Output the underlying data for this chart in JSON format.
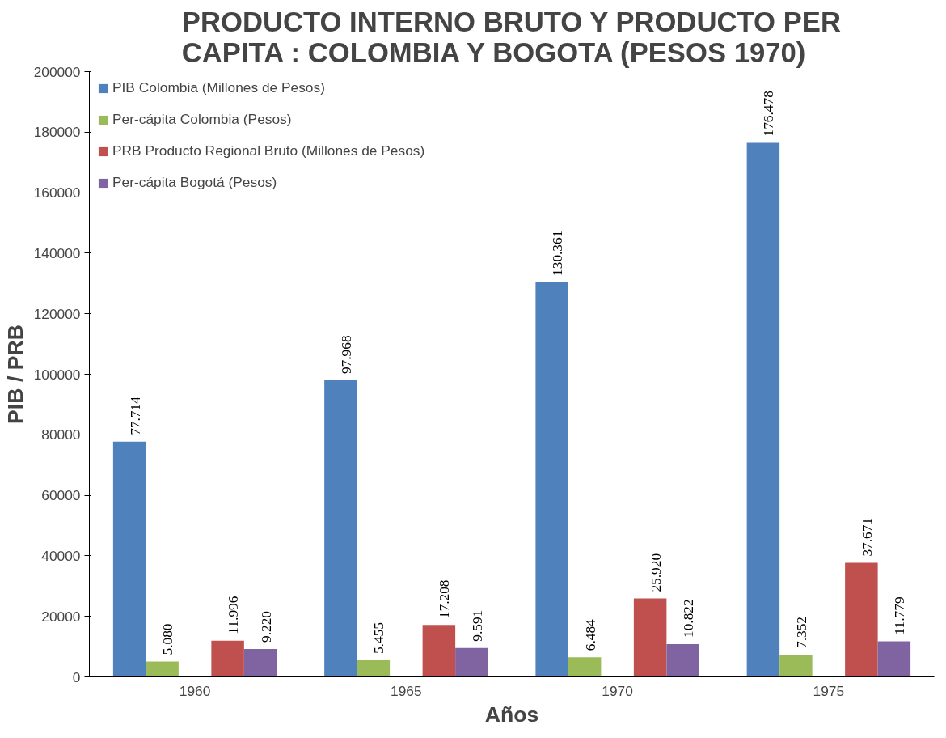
{
  "chart_data": {
    "type": "bar",
    "title": "PRODUCTO INTERNO BRUTO Y PRODUCTO PER\nCAPITA : COLOMBIA Y BOGOTA (PESOS 1970)",
    "xlabel": "Años",
    "ylabel": "PIB / PRB",
    "categories": [
      "1960",
      "1965",
      "1970",
      "1975"
    ],
    "series": [
      {
        "name": "PIB Colombia (Millones de Pesos)",
        "color": "#4f81bd",
        "values": [
          77714,
          97968,
          130361,
          176478
        ],
        "value_labels": [
          "77.714",
          "97.968",
          "130.361",
          "176.478"
        ]
      },
      {
        "name": "Per-cápita Colombia (Pesos)",
        "color": "#9bbb59",
        "values": [
          5080,
          5455,
          6484,
          7352
        ],
        "value_labels": [
          "5.080",
          "5.455",
          "6.484",
          "7.352"
        ]
      },
      {
        "name": "PRB Producto Regional Bruto (Millones de Pesos)",
        "color": "#c0504d",
        "values": [
          11996,
          17208,
          25920,
          37671
        ],
        "value_labels": [
          "11.996",
          "17.208",
          "25.920",
          "37.671"
        ]
      },
      {
        "name": "Per-cápita Bogotá (Pesos)",
        "color": "#8064a2",
        "values": [
          9220,
          9591,
          10822,
          11779
        ],
        "value_labels": [
          "9.220",
          "9.591",
          "10.822",
          "11.779"
        ]
      }
    ],
    "ylim": [
      0,
      200000
    ],
    "yticks": [
      0,
      20000,
      40000,
      60000,
      80000,
      100000,
      120000,
      140000,
      160000,
      180000,
      200000
    ],
    "grid": false,
    "legend": "top left"
  }
}
